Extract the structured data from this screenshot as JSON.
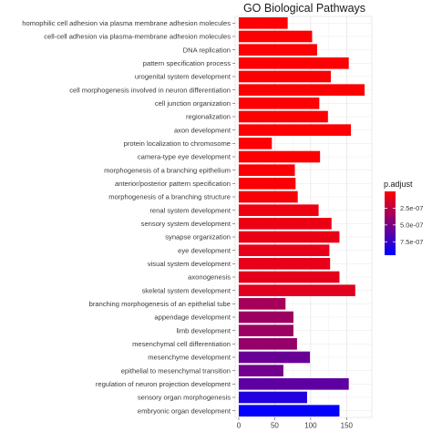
{
  "chart_data": {
    "type": "bar",
    "orientation": "horizontal",
    "title": "GO Biological Pathways",
    "xlabel": "",
    "ylabel": "",
    "xlim": [
      0,
      180
    ],
    "x_ticks": [
      "0",
      "50",
      "100",
      "150"
    ],
    "x_tick_values": [
      0,
      50,
      100,
      150
    ],
    "grid": true,
    "legend": {
      "title": "p.adjust",
      "placement": "right",
      "type": "colorbar",
      "ticks": [
        "2.5e-07",
        "5.0e-07",
        "7.5e-07"
      ],
      "tick_values": [
        2.5e-07,
        5e-07,
        7.5e-07
      ],
      "range": [
        0,
        9.5e-07
      ],
      "colors": [
        "#ff0000",
        "#0000ff"
      ]
    },
    "categories": [
      "homophilic cell adhesion via plasma membrane adhesion molecules",
      "cell-cell adhesion via plasma-membrane adhesion molecules",
      "DNA replication",
      "pattern specification process",
      "urogenital system development",
      "cell morphogenesis involved in neuron differentiation",
      "cell junction organization",
      "regionalization",
      "axon development",
      "protein localization to chromosome",
      "camera-type eye development",
      "morphogenesis of a branching epithelium",
      "anterior/posterior pattern specification",
      "morphogenesis of a branching structure",
      "renal system development",
      "sensory system development",
      "synapse organization",
      "eye development",
      "visual system development",
      "axonogenesis",
      "skeletal system development",
      "branching morphogenesis of an epithelial tube",
      "appendage development",
      "limb development",
      "mesenchymal cell differentiation",
      "mesenchyme development",
      "epithelial to mesenchymal transition",
      "regulation of neuron projection development",
      "sensory organ morphogenesis",
      "embryonic organ development"
    ],
    "values": [
      68,
      102,
      109,
      153,
      128,
      175,
      112,
      124,
      156,
      46,
      113,
      78,
      79,
      82,
      111,
      129,
      140,
      126,
      127,
      140,
      162,
      65,
      76,
      76,
      81,
      99,
      62,
      153,
      95,
      140
    ],
    "p_adjust": [
      1e-08,
      1e-08,
      1e-08,
      1e-08,
      1e-08,
      1e-08,
      1e-08,
      1e-08,
      1e-08,
      1e-08,
      1e-08,
      2e-08,
      2e-08,
      3e-08,
      6e-08,
      7e-08,
      8e-08,
      9e-08,
      9e-08,
      1e-07,
      1.1e-07,
      3.3e-07,
      3.7e-07,
      3.7e-07,
      3.9e-07,
      5.6e-07,
      5.2e-07,
      6e-07,
      8.3e-07,
      9.4e-07
    ]
  }
}
